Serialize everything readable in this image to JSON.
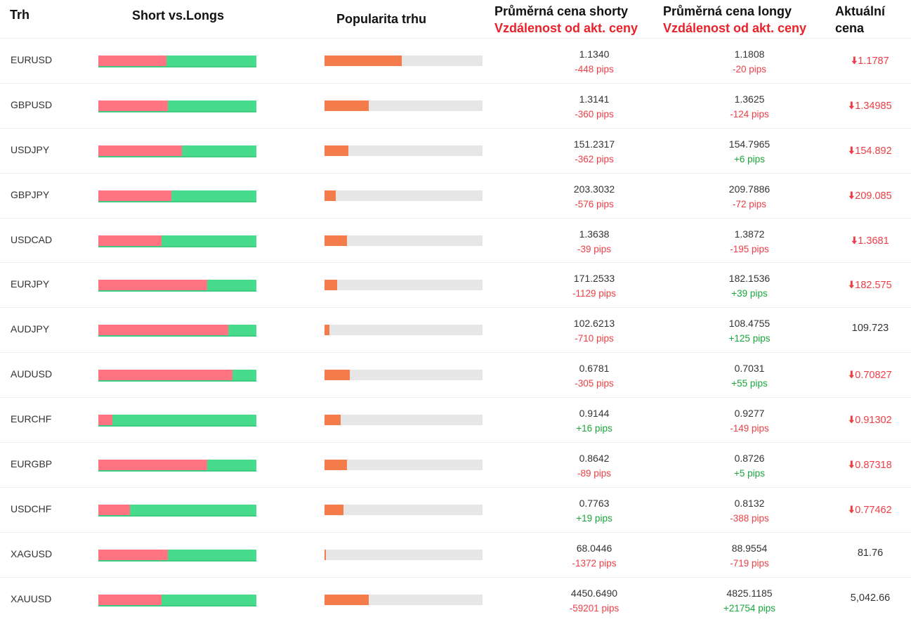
{
  "headers": {
    "market": "Trh",
    "short_vs_long": "Short vs.Longs",
    "popularity": "Popularita trhu",
    "avg_short_title": "Průměrná cena shorty",
    "avg_short_sub": "Vzdálenost od akt. ceny",
    "avg_long_title": "Průměrná cena longy",
    "avg_long_sub": "Vzdálenost od akt. ceny",
    "current_title": "Aktuální cena"
  },
  "colors": {
    "short_bar": "#ff7480",
    "long_bar": "#47db8e",
    "popularity_fill": "#f47b4a",
    "popularity_track": "#e6e6e6",
    "negative": "#ef3e45",
    "positive": "#19a63a"
  },
  "rows": [
    {
      "symbol": "EURUSD",
      "short_pct": 43,
      "popularity_pct": 49,
      "short_price": "1.1340",
      "short_pips": "-448 pips",
      "short_sign": "neg",
      "long_price": "1.1808",
      "long_pips": "-20 pips",
      "long_sign": "neg",
      "current": "1.1787",
      "trend": "down",
      "arrow": "down-arrow-icon"
    },
    {
      "symbol": "GBPUSD",
      "short_pct": 44,
      "popularity_pct": 28,
      "short_price": "1.3141",
      "short_pips": "-360 pips",
      "short_sign": "neg",
      "long_price": "1.3625",
      "long_pips": "-124 pips",
      "long_sign": "neg",
      "current": "1.34985",
      "trend": "down",
      "arrow": "down-arrow-icon"
    },
    {
      "symbol": "USDJPY",
      "short_pct": 53,
      "popularity_pct": 15,
      "short_price": "151.2317",
      "short_pips": "-362 pips",
      "short_sign": "neg",
      "long_price": "154.7965",
      "long_pips": "+6 pips",
      "long_sign": "pos",
      "current": "154.892",
      "trend": "down",
      "arrow": "down-arrow-icon"
    },
    {
      "symbol": "GBPJPY",
      "short_pct": 46,
      "popularity_pct": 7,
      "short_price": "203.3032",
      "short_pips": "-576 pips",
      "short_sign": "neg",
      "long_price": "209.7886",
      "long_pips": "-72 pips",
      "long_sign": "neg",
      "current": "209.085",
      "trend": "down",
      "arrow": "down-arrow-icon"
    },
    {
      "symbol": "USDCAD",
      "short_pct": 40,
      "popularity_pct": 14,
      "short_price": "1.3638",
      "short_pips": "-39 pips",
      "short_sign": "neg",
      "long_price": "1.3872",
      "long_pips": "-195 pips",
      "long_sign": "neg",
      "current": "1.3681",
      "trend": "down",
      "arrow": "down-arrow-icon"
    },
    {
      "symbol": "EURJPY",
      "short_pct": 69,
      "popularity_pct": 8,
      "short_price": "171.2533",
      "short_pips": "-1129 pips",
      "short_sign": "neg",
      "long_price": "182.1536",
      "long_pips": "+39 pips",
      "long_sign": "pos",
      "current": "182.575",
      "trend": "down",
      "arrow": "down-arrow-icon"
    },
    {
      "symbol": "AUDJPY",
      "short_pct": 82,
      "popularity_pct": 3,
      "short_price": "102.6213",
      "short_pips": "-710 pips",
      "short_sign": "neg",
      "long_price": "108.4755",
      "long_pips": "+125 pips",
      "long_sign": "pos",
      "current": "109.723",
      "trend": "flat",
      "arrow": ""
    },
    {
      "symbol": "AUDUSD",
      "short_pct": 85,
      "popularity_pct": 16,
      "short_price": "0.6781",
      "short_pips": "-305 pips",
      "short_sign": "neg",
      "long_price": "0.7031",
      "long_pips": "+55 pips",
      "long_sign": "pos",
      "current": "0.70827",
      "trend": "down",
      "arrow": "down-arrow-icon"
    },
    {
      "symbol": "EURCHF",
      "short_pct": 9,
      "popularity_pct": 10,
      "short_price": "0.9144",
      "short_pips": "+16 pips",
      "short_sign": "pos",
      "long_price": "0.9277",
      "long_pips": "-149 pips",
      "long_sign": "neg",
      "current": "0.91302",
      "trend": "down",
      "arrow": "down-arrow-icon"
    },
    {
      "symbol": "EURGBP",
      "short_pct": 69,
      "popularity_pct": 14,
      "short_price": "0.8642",
      "short_pips": "-89 pips",
      "short_sign": "neg",
      "long_price": "0.8726",
      "long_pips": "+5 pips",
      "long_sign": "pos",
      "current": "0.87318",
      "trend": "down",
      "arrow": "down-arrow-icon"
    },
    {
      "symbol": "USDCHF",
      "short_pct": 20,
      "popularity_pct": 12,
      "short_price": "0.7763",
      "short_pips": "+19 pips",
      "short_sign": "pos",
      "long_price": "0.8132",
      "long_pips": "-388 pips",
      "long_sign": "neg",
      "current": "0.77462",
      "trend": "down",
      "arrow": "down-arrow-icon"
    },
    {
      "symbol": "XAGUSD",
      "short_pct": 44,
      "popularity_pct": 1,
      "short_price": "68.0446",
      "short_pips": "-1372 pips",
      "short_sign": "neg",
      "long_price": "88.9554",
      "long_pips": "-719 pips",
      "long_sign": "neg",
      "current": "81.76",
      "trend": "flat",
      "arrow": ""
    },
    {
      "symbol": "XAUUSD",
      "short_pct": 40,
      "popularity_pct": 28,
      "short_price": "4450.6490",
      "short_pips": "-59201 pips",
      "short_sign": "neg",
      "long_price": "4825.1185",
      "long_pips": "+21754 pips",
      "long_sign": "pos",
      "current": "5,042.66",
      "trend": "flat",
      "arrow": ""
    }
  ]
}
